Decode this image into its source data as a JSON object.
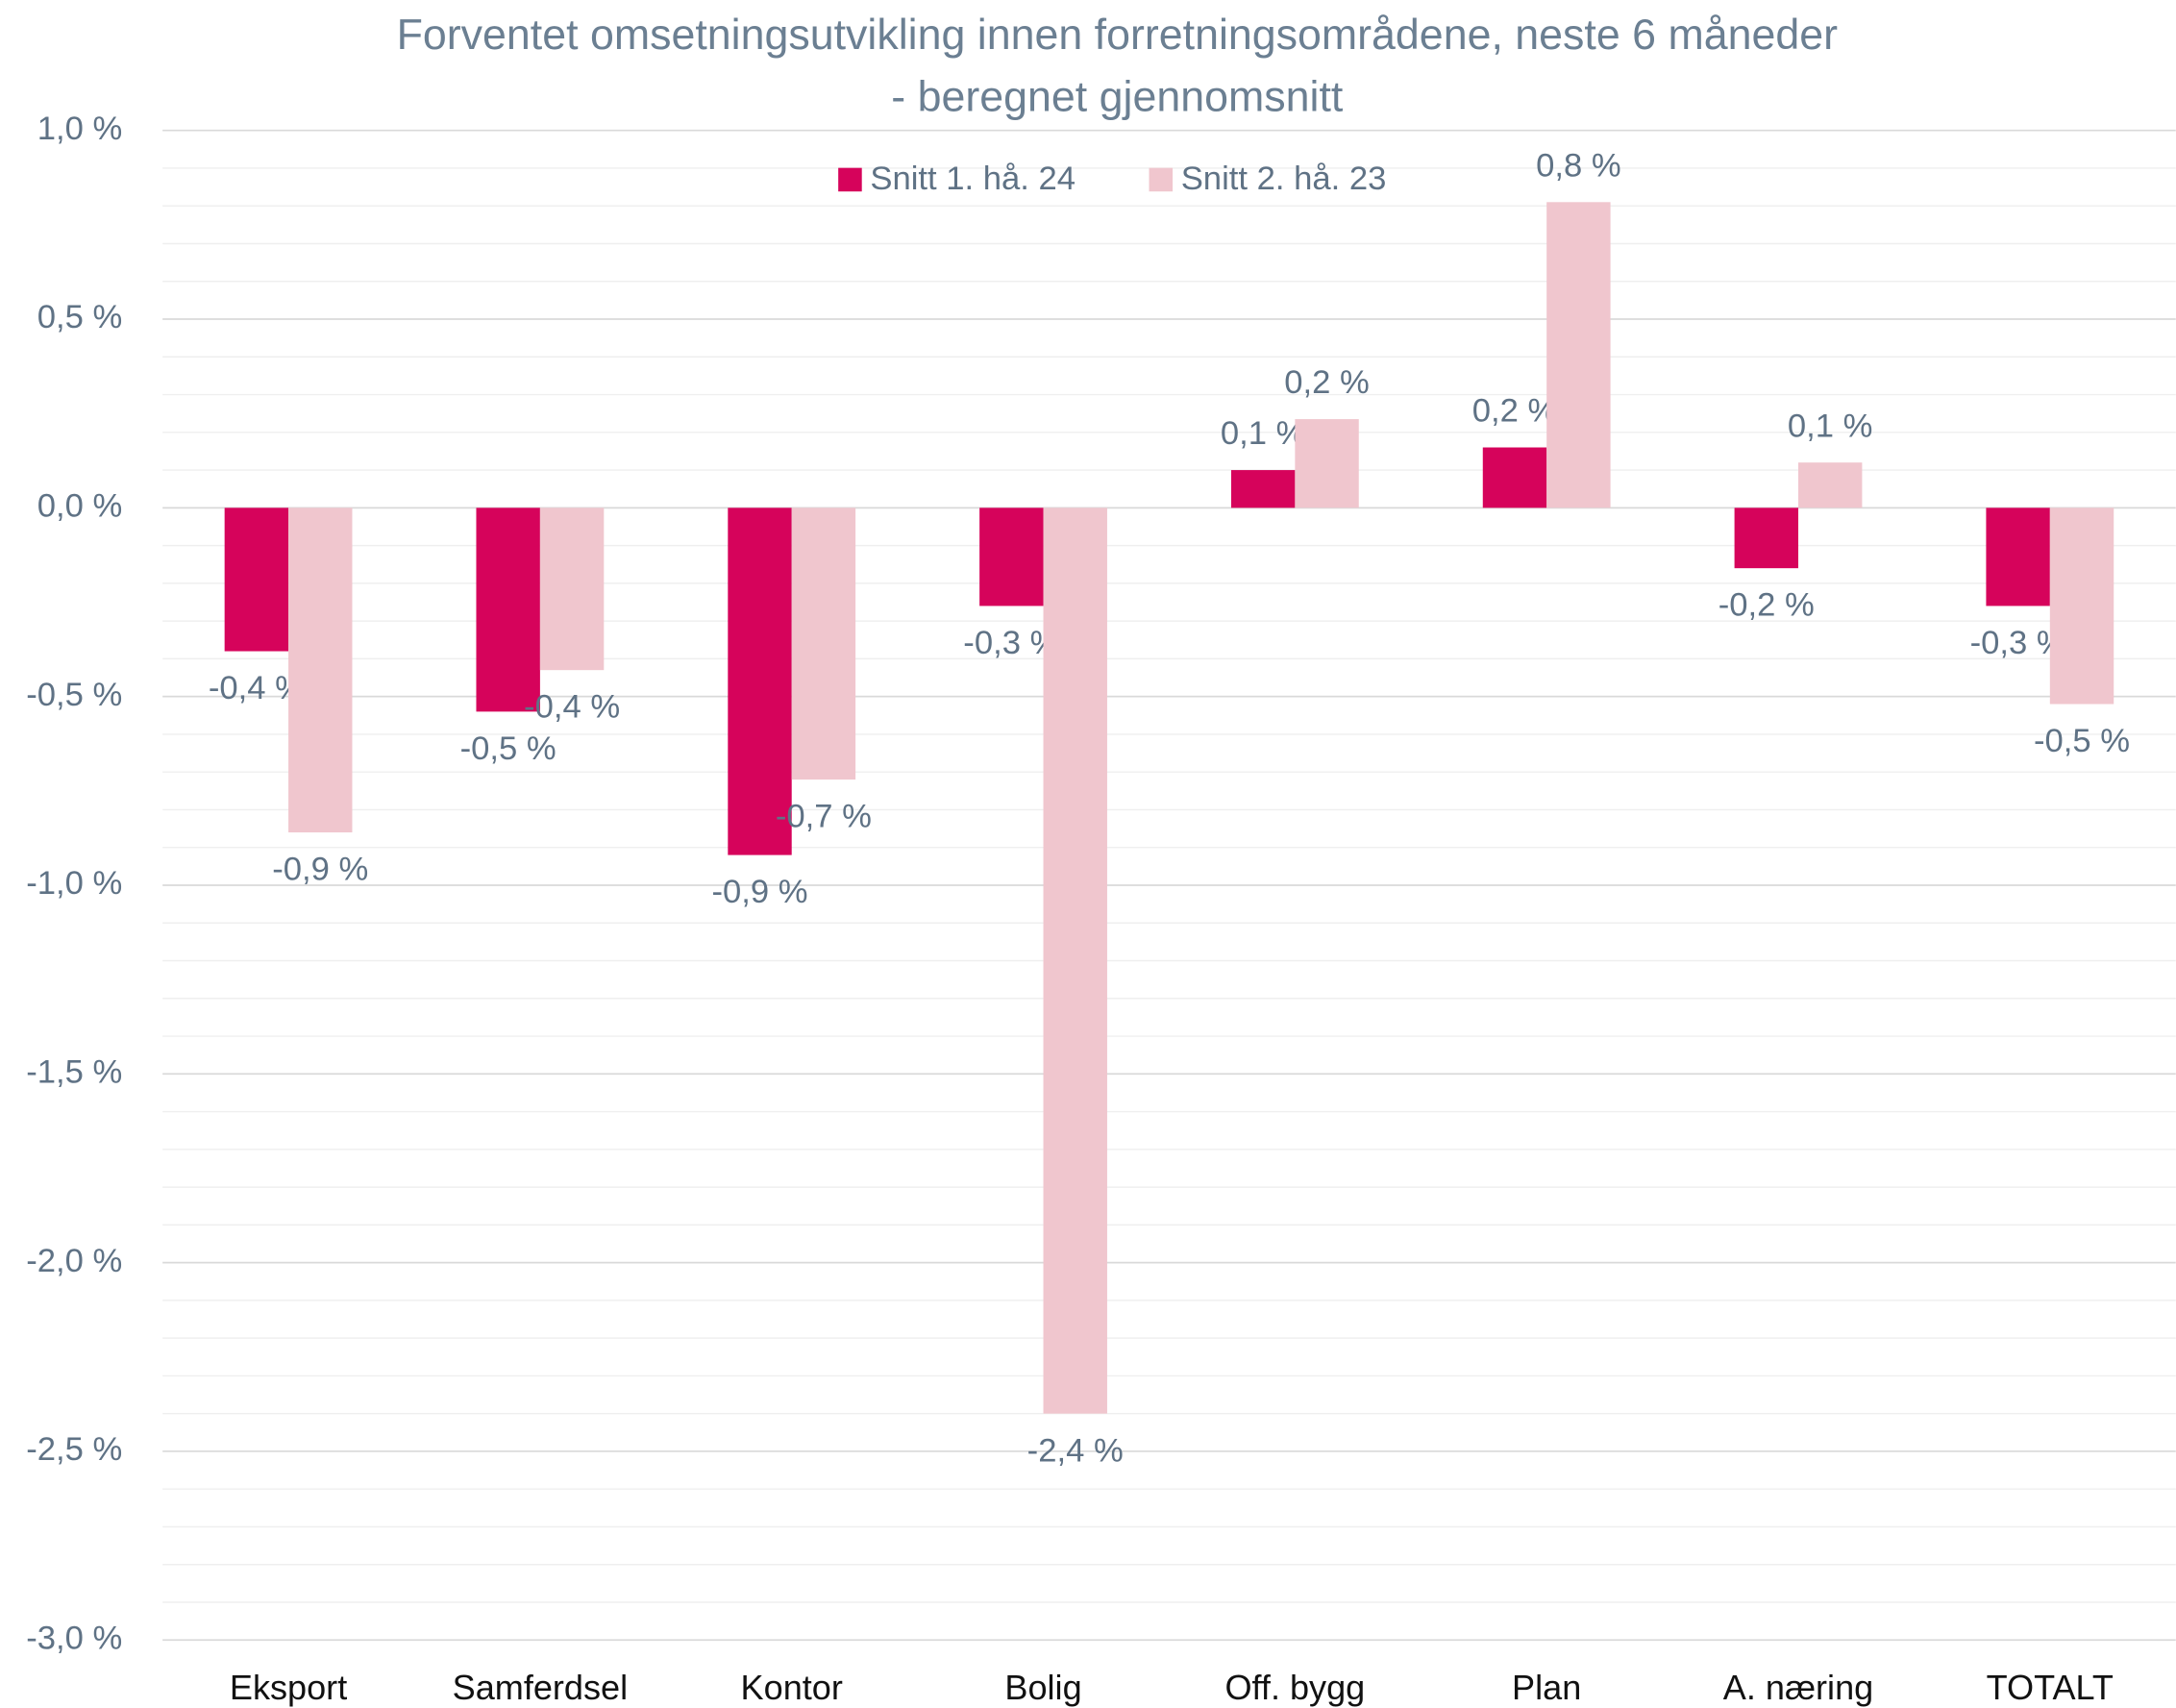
{
  "chart_data": {
    "type": "bar",
    "title": [
      "Forventet omsetningsutvikling innen forretningsområdene, neste 6 måneder",
      "- beregnet gjennomsnitt"
    ],
    "categories": [
      "Eksport",
      "Samferdsel",
      "Kontor",
      "Bolig",
      "Off. bygg",
      "Plan",
      "A. næring",
      "TOTALT"
    ],
    "series": [
      {
        "name": "Snitt 1. hå. 24",
        "color": "#d6035b",
        "values": [
          -0.38,
          -0.54,
          -0.92,
          -0.26,
          0.1,
          0.16,
          -0.16,
          -0.26
        ],
        "value_labels": [
          "-0,4 %",
          "-0,5 %",
          "-0,9 %",
          "-0,3 %",
          "0,1 %",
          "0,2 %",
          "-0,2 %",
          "-0,3 %"
        ]
      },
      {
        "name": "Snitt 2. hå. 23",
        "color": "#f0c6ce",
        "values": [
          -0.86,
          -0.43,
          -0.72,
          -2.4,
          0.235,
          0.81,
          0.12,
          -0.52
        ],
        "value_labels": [
          "-0,9 %",
          "-0,4 %",
          "-0,7 %",
          "-2,4 %",
          "0,2 %",
          "0,8 %",
          "0,1 %",
          "-0,5 %"
        ]
      }
    ],
    "ylim": [
      -3.0,
      1.0
    ],
    "yticks": [
      {
        "value": 1.0,
        "label": "1,0 %"
      },
      {
        "value": 0.5,
        "label": "0,5 %"
      },
      {
        "value": 0.0,
        "label": "0,0 %"
      },
      {
        "value": -0.5,
        "label": "-0,5 %"
      },
      {
        "value": -1.0,
        "label": "-1,0 %"
      },
      {
        "value": -1.5,
        "label": "-1,5 %"
      },
      {
        "value": -2.0,
        "label": "-2,0 %"
      },
      {
        "value": -2.5,
        "label": "-2,5 %"
      },
      {
        "value": -3.0,
        "label": "-3,0 %"
      }
    ],
    "minor_yticks": [
      0.9,
      0.8,
      0.7,
      0.6,
      0.4,
      0.3,
      0.2,
      0.1,
      -0.1,
      -0.2,
      -0.3,
      -0.4,
      -0.6,
      -0.7,
      -0.8,
      -0.9,
      -1.1,
      -1.2,
      -1.3,
      -1.4,
      -1.6,
      -1.7,
      -1.8,
      -1.9,
      -2.1,
      -2.2,
      -2.3,
      -2.4,
      -2.6,
      -2.7,
      -2.8,
      -2.9
    ],
    "grid": true,
    "legend": "top"
  }
}
